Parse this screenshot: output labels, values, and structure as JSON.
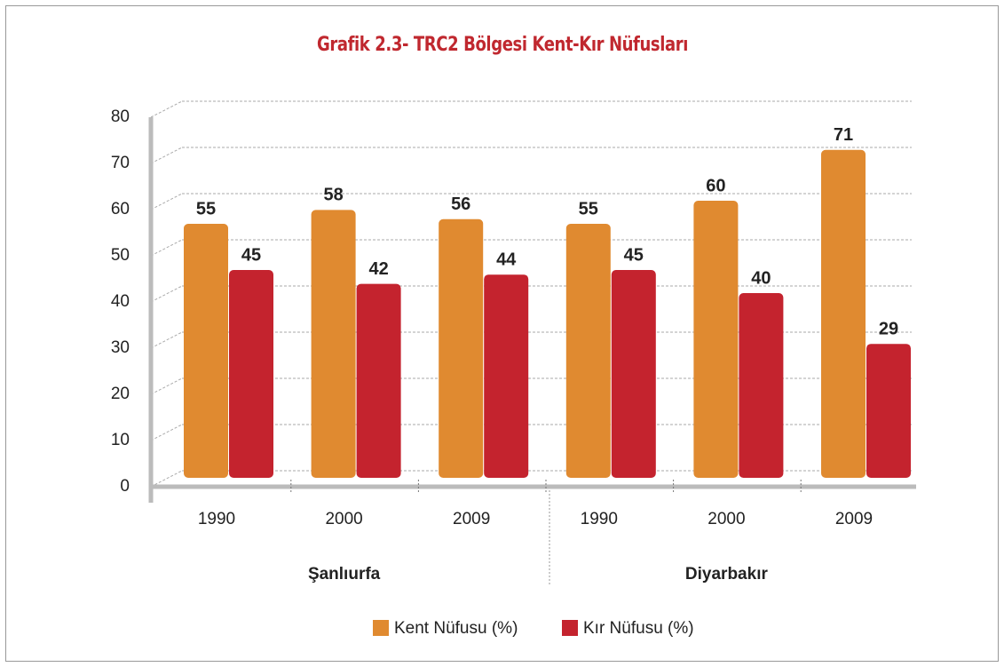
{
  "chart_data": {
    "type": "bar",
    "title": "Grafik 2.3- TRC2 Bölgesi Kent-Kır Nüfusları",
    "categories": [
      "1990",
      "2000",
      "2009",
      "1990",
      "2000",
      "2009"
    ],
    "groups": [
      "Şanlıurfa",
      "Diyarbakır"
    ],
    "series": [
      {
        "name": "Kent Nüfusu (%)",
        "color": "#e08a30",
        "values": [
          55,
          58,
          56,
          55,
          60,
          71
        ]
      },
      {
        "name": "Kır Nüfusu (%)",
        "color": "#c4232e",
        "values": [
          45,
          42,
          44,
          45,
          40,
          29
        ]
      }
    ],
    "ylim": [
      0,
      80
    ],
    "yticks": [
      0,
      10,
      20,
      30,
      40,
      50,
      60,
      70,
      80
    ],
    "grid": true,
    "legend": "bottom"
  }
}
